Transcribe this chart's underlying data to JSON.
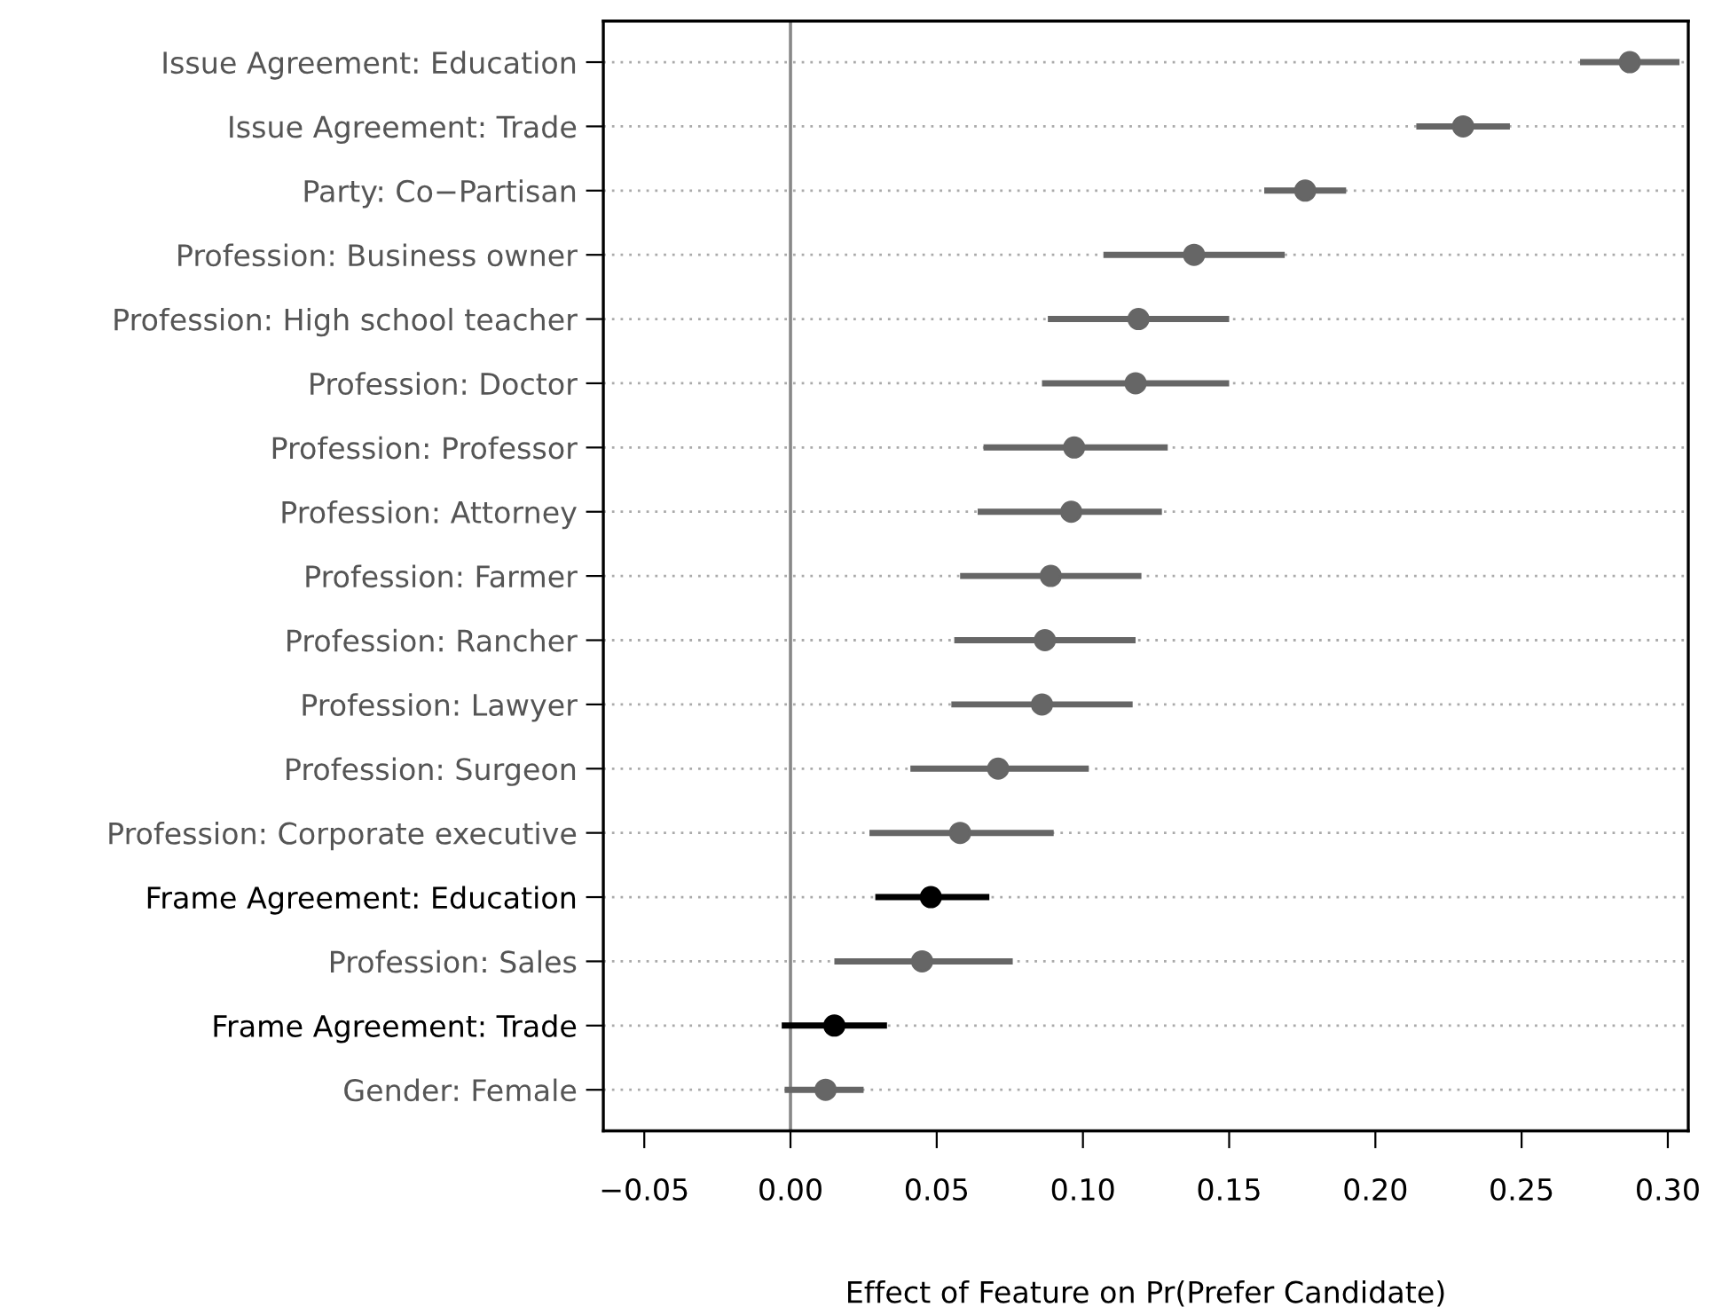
{
  "chart_data": {
    "type": "scatter",
    "orientation": "horizontal",
    "xlabel": "Effect of Feature on Pr(Prefer Candidate)",
    "categories": [
      "Issue Agreement: Education",
      "Issue Agreement: Trade",
      "Party: Co−Partisan",
      "Profession: Business owner",
      "Profession: High school teacher",
      "Profession: Doctor",
      "Profession: Professor",
      "Profession: Attorney",
      "Profession: Farmer",
      "Profession: Rancher",
      "Profession: Lawyer",
      "Profession: Surgeon",
      "Profession: Corporate executive",
      "Frame Agreement: Education",
      "Profession: Sales",
      "Frame Agreement: Trade",
      "Gender: Female"
    ],
    "values": [
      0.287,
      0.23,
      0.176,
      0.138,
      0.119,
      0.118,
      0.097,
      0.096,
      0.089,
      0.087,
      0.086,
      0.071,
      0.058,
      0.048,
      0.045,
      0.015,
      0.012
    ],
    "errors": [
      [
        0.27,
        0.304
      ],
      [
        0.214,
        0.246
      ],
      [
        0.162,
        0.19
      ],
      [
        0.107,
        0.169
      ],
      [
        0.088,
        0.15
      ],
      [
        0.086,
        0.15
      ],
      [
        0.066,
        0.129
      ],
      [
        0.064,
        0.127
      ],
      [
        0.058,
        0.12
      ],
      [
        0.056,
        0.118
      ],
      [
        0.055,
        0.117
      ],
      [
        0.041,
        0.102
      ],
      [
        0.027,
        0.09
      ],
      [
        0.029,
        0.068
      ],
      [
        0.015,
        0.076
      ],
      [
        -0.003,
        0.033
      ],
      [
        -0.002,
        0.025
      ]
    ],
    "colors": [
      "#666666",
      "#666666",
      "#666666",
      "#666666",
      "#666666",
      "#666666",
      "#666666",
      "#666666",
      "#666666",
      "#666666",
      "#666666",
      "#666666",
      "#666666",
      "#000000",
      "#666666",
      "#000000",
      "#666666"
    ],
    "xlim": [
      -0.064,
      0.307
    ],
    "xticks": [
      {
        "value": -0.05,
        "label": "−0.05"
      },
      {
        "value": 0.0,
        "label": "0.00"
      },
      {
        "value": 0.05,
        "label": "0.05"
      },
      {
        "value": 0.1,
        "label": "0.10"
      },
      {
        "value": 0.15,
        "label": "0.15"
      },
      {
        "value": 0.2,
        "label": "0.20"
      },
      {
        "value": 0.25,
        "label": "0.25"
      },
      {
        "value": 0.3,
        "label": "0.30"
      }
    ],
    "ref_lines": [
      {
        "axis": "x",
        "value": 0,
        "color": "#888888"
      }
    ],
    "grid": "y",
    "marker": "circle"
  }
}
